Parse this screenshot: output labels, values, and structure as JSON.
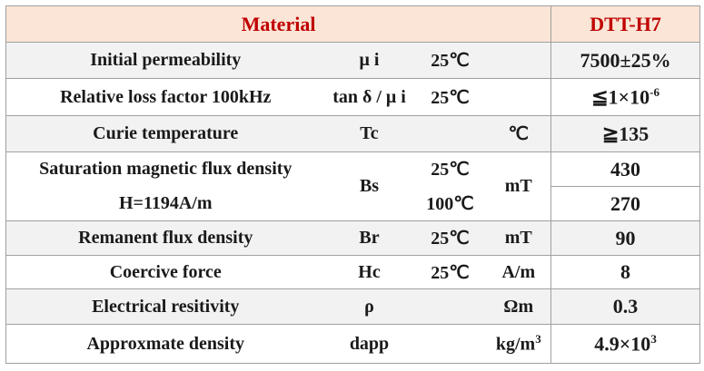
{
  "header": {
    "material": "Material",
    "grade": "DTT-H7"
  },
  "rows": [
    {
      "property": "Initial permeability",
      "symbol": "μ i",
      "condition": "25℃",
      "value": "7500±25%"
    },
    {
      "property": "Relative loss factor 100kHz",
      "symbol": "tan δ / μ i",
      "condition": "25℃",
      "value": {
        "text": "≦1×10",
        "sup": "-6"
      }
    },
    {
      "property": "Curie temperature",
      "symbol": "Tc",
      "unit": "℃",
      "value": "≧135"
    },
    {
      "property": "Saturation magnetic flux density",
      "property_note": "H=1194A/m",
      "symbol": "Bs",
      "conditions": [
        "25℃",
        "100℃"
      ],
      "unit": "mT",
      "values": [
        430,
        270
      ]
    },
    {
      "property": "Remanent flux density",
      "symbol": "Br",
      "condition": "25℃",
      "unit": "mT",
      "value": 90
    },
    {
      "property": "Coercive force",
      "symbol": "Hc",
      "condition": "25℃",
      "unit": "A/m",
      "value": 8
    },
    {
      "property": "Electrical resitivity",
      "symbol": "ρ",
      "unit": "Ωm",
      "value": 0.3
    },
    {
      "property": "Approxmate density",
      "symbol": "dapp",
      "unit": {
        "text": "kg/m",
        "sup": "3"
      },
      "value": {
        "text": "4.9×10",
        "sup": "3"
      }
    }
  ]
}
